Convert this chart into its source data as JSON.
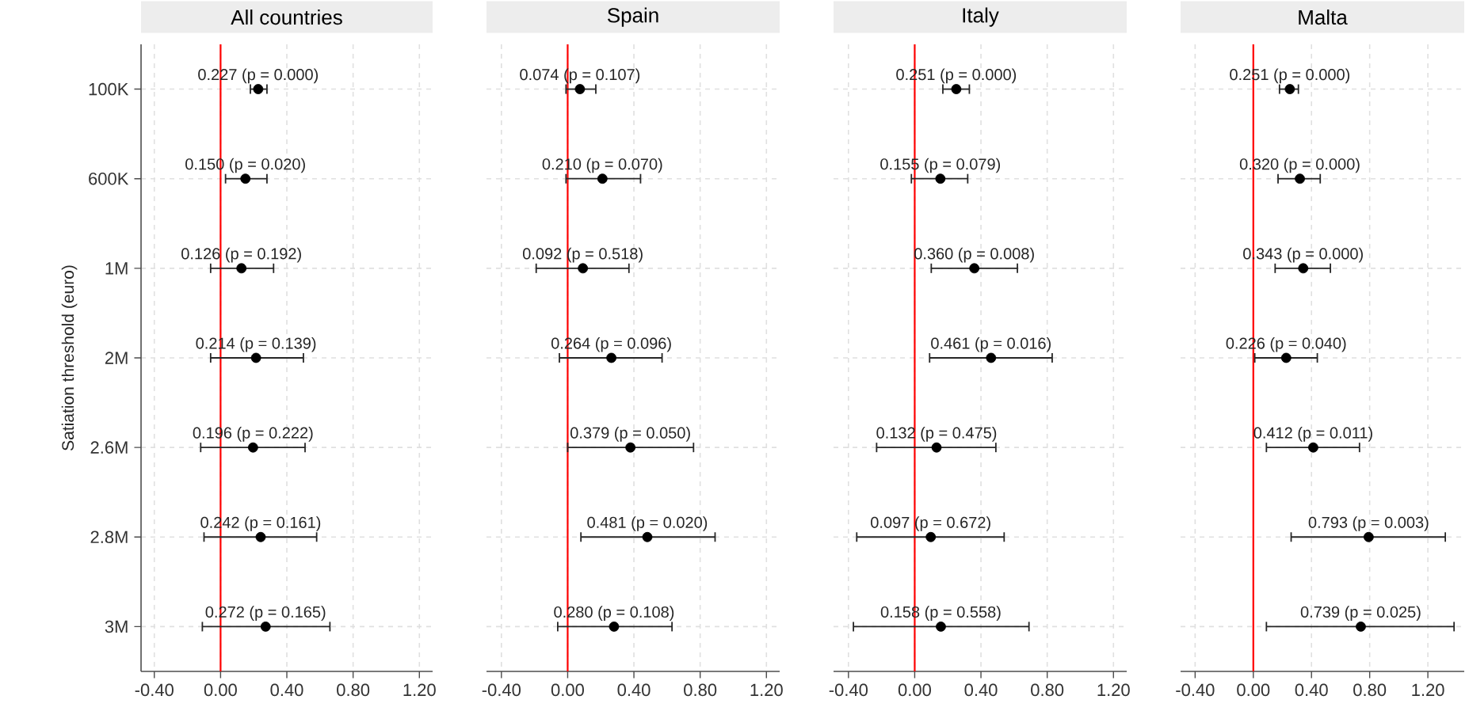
{
  "chart_data": [
    {
      "type": "scatter",
      "orientation": "horizontal",
      "title": "All countries",
      "ylabel": "Satiation threshold (euro)",
      "color": "#000000",
      "marker": "circle",
      "grid": true,
      "categories": [
        "100K",
        "600K",
        "1M",
        "2M",
        "2.6M",
        "2.8M",
        "3M"
      ],
      "values": [
        0.227,
        0.15,
        0.126,
        0.214,
        0.196,
        0.242,
        0.272
      ],
      "errors": [
        [
          0.18,
          0.28
        ],
        [
          0.03,
          0.28
        ],
        [
          -0.06,
          0.32
        ],
        [
          -0.06,
          0.5
        ],
        [
          -0.12,
          0.51
        ],
        [
          -0.1,
          0.58
        ],
        [
          -0.11,
          0.66
        ]
      ],
      "value_labels": [
        "0.227 (p = 0.000)",
        "0.150 (p = 0.020)",
        "0.126 (p = 0.192)",
        "0.214 (p = 0.139)",
        "0.196 (p = 0.222)",
        "0.242 (p = 0.161)",
        "0.272 (p = 0.165)"
      ],
      "xlim": [
        -0.48,
        1.28
      ],
      "xticks": [
        {
          "value": -0.4,
          "label": "-0.40"
        },
        {
          "value": 0,
          "label": "0.00"
        },
        {
          "value": 0.4,
          "label": "0.40"
        },
        {
          "value": 0.8,
          "label": "0.80"
        },
        {
          "value": 1.2,
          "label": "1.20"
        }
      ],
      "ref_lines": [
        {
          "axis": "x",
          "value": 0,
          "color": "#ff0000"
        }
      ]
    },
    {
      "type": "scatter",
      "orientation": "horizontal",
      "title": "Spain",
      "color": "#000000",
      "marker": "circle",
      "grid": true,
      "tick_labels": "x",
      "categories": [
        null,
        null,
        null,
        null,
        null,
        null,
        null
      ],
      "values": [
        0.074,
        0.21,
        0.092,
        0.264,
        0.379,
        0.481,
        0.28
      ],
      "errors": [
        [
          -0.01,
          0.17
        ],
        [
          -0.01,
          0.44
        ],
        [
          -0.19,
          0.37
        ],
        [
          -0.05,
          0.57
        ],
        [
          0.0,
          0.76
        ],
        [
          0.08,
          0.89
        ],
        [
          -0.06,
          0.63
        ]
      ],
      "value_labels": [
        "0.074 (p = 0.107)",
        "0.210 (p = 0.070)",
        "0.092 (p = 0.518)",
        "0.264 (p = 0.096)",
        "0.379 (p = 0.050)",
        "0.481 (p = 0.020)",
        "0.280 (p = 0.108)"
      ],
      "xlim": [
        -0.49,
        1.28
      ],
      "xticks": [
        {
          "value": -0.4,
          "label": "-0.40"
        },
        {
          "value": 0,
          "label": "0.00"
        },
        {
          "value": 0.4,
          "label": "0.40"
        },
        {
          "value": 0.8,
          "label": "0.80"
        },
        {
          "value": 1.2,
          "label": "1.20"
        }
      ],
      "ref_lines": [
        {
          "axis": "x",
          "value": 0,
          "color": "#ff0000"
        }
      ]
    },
    {
      "type": "scatter",
      "orientation": "horizontal",
      "title": "Italy",
      "color": "#000000",
      "marker": "circle",
      "grid": true,
      "tick_labels": "x",
      "categories": [
        null,
        null,
        null,
        null,
        null,
        null,
        null
      ],
      "values": [
        0.251,
        0.155,
        0.36,
        0.461,
        0.132,
        0.097,
        0.158
      ],
      "errors": [
        [
          0.17,
          0.33
        ],
        [
          -0.02,
          0.32
        ],
        [
          0.1,
          0.62
        ],
        [
          0.09,
          0.83
        ],
        [
          -0.23,
          0.49
        ],
        [
          -0.35,
          0.54
        ],
        [
          -0.37,
          0.69
        ]
      ],
      "value_labels": [
        "0.251 (p = 0.000)",
        "0.155 (p = 0.079)",
        "0.360 (p = 0.008)",
        "0.461 (p = 0.016)",
        "0.132 (p = 0.475)",
        "0.097 (p = 0.672)",
        "0.158 (p = 0.558)"
      ],
      "xlim": [
        -0.49,
        1.28
      ],
      "xticks": [
        {
          "value": -0.4,
          "label": "-0.40"
        },
        {
          "value": 0,
          "label": "0.00"
        },
        {
          "value": 0.4,
          "label": "0.40"
        },
        {
          "value": 0.8,
          "label": "0.80"
        },
        {
          "value": 1.2,
          "label": "1.20"
        }
      ],
      "ref_lines": [
        {
          "axis": "x",
          "value": 0,
          "color": "#ff0000"
        }
      ]
    },
    {
      "type": "scatter",
      "orientation": "horizontal",
      "title": "Malta",
      "color": "#000000",
      "marker": "circle",
      "grid": true,
      "tick_labels": "x",
      "categories": [
        null,
        null,
        null,
        null,
        null,
        null,
        null
      ],
      "values": [
        0.251,
        0.32,
        0.343,
        0.226,
        0.412,
        0.793,
        0.739
      ],
      "errors": [
        [
          0.18,
          0.31
        ],
        [
          0.17,
          0.46
        ],
        [
          0.15,
          0.53
        ],
        [
          0.01,
          0.44
        ],
        [
          0.09,
          0.73
        ],
        [
          0.26,
          1.32
        ],
        [
          0.09,
          1.38
        ]
      ],
      "value_labels": [
        "0.251 (p = 0.000)",
        "0.320 (p = 0.000)",
        "0.343 (p = 0.000)",
        "0.226 (p = 0.040)",
        "0.412 (p = 0.011)",
        "0.793 (p = 0.003)",
        "0.739 (p = 0.025)"
      ],
      "xlim": [
        -0.5,
        1.45
      ],
      "xticks": [
        {
          "value": -0.4,
          "label": "-0.40"
        },
        {
          "value": 0,
          "label": "0.00"
        },
        {
          "value": 0.4,
          "label": "0.40"
        },
        {
          "value": 0.8,
          "label": "0.80"
        },
        {
          "value": 1.2,
          "label": "1.20"
        }
      ],
      "ref_lines": [
        {
          "axis": "x",
          "value": 0,
          "color": "#ff0000"
        }
      ]
    }
  ]
}
